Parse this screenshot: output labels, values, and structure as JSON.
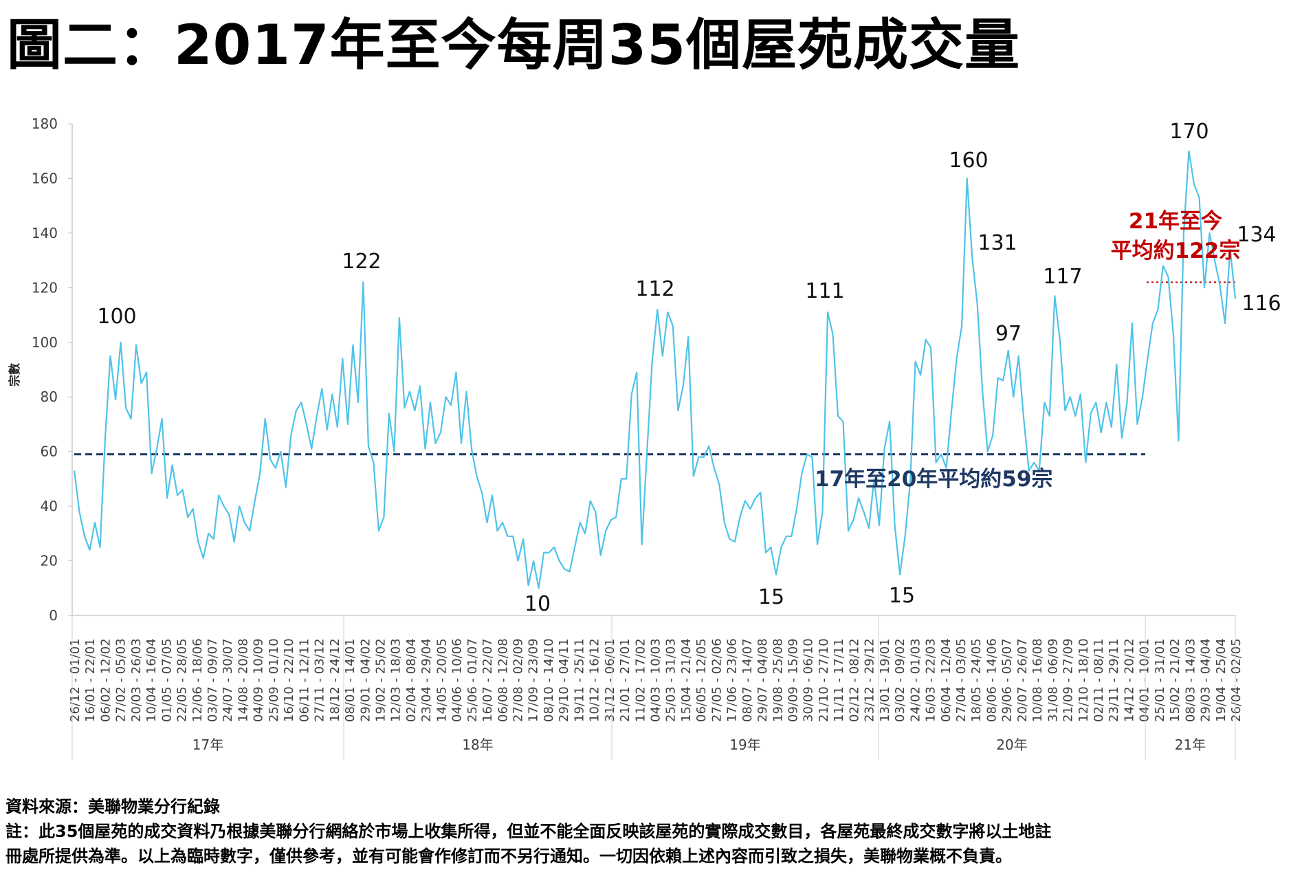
{
  "title": "圖二：2017年至今每周35個屋苑成交量",
  "footer": {
    "source": "資料來源：美聯物業分行紀錄",
    "note_line1": "註：此35個屋苑的成交資料乃根據美聯分行網絡於市場上收集所得，但並不能全面反映該屋苑的實際成交數目，各屋苑最終成交數字將以土地註",
    "note_line2": "冊處所提供為準。以上為臨時數字，僅供參考，並有可能會作修訂而不另行通知。一切因依賴上述內容而引致之損失，美聯物業概不負責。"
  },
  "chart_data": {
    "type": "line",
    "ylabel": "宗數",
    "ylim": [
      0,
      180
    ],
    "yticks": [
      0,
      20,
      40,
      60,
      80,
      100,
      120,
      140,
      160,
      180
    ],
    "grid": false,
    "line_color": "#4FC3E8",
    "series": [
      {
        "values": [
          53,
          38,
          29,
          24,
          34,
          25,
          65,
          95,
          79,
          100,
          76,
          72,
          99,
          85,
          89,
          52,
          61,
          72,
          43,
          55,
          44,
          46,
          36,
          39,
          27,
          21,
          30,
          28,
          44,
          40,
          37,
          27,
          40,
          34,
          31,
          42,
          52,
          72,
          57,
          54,
          60,
          47,
          66,
          75,
          78,
          70,
          61,
          73,
          83,
          68,
          81,
          69,
          94,
          70,
          99,
          78,
          122,
          62,
          56,
          31,
          36,
          74,
          60,
          109,
          76,
          82,
          75,
          84,
          61,
          78,
          63,
          67,
          80,
          77,
          89,
          63,
          82,
          61,
          51,
          45,
          34,
          44,
          31,
          34,
          29,
          29,
          20,
          28,
          11,
          20,
          10,
          23,
          23,
          25,
          20,
          17,
          16,
          25,
          34,
          30,
          42,
          38,
          22,
          31,
          35,
          36,
          50,
          50,
          81,
          89,
          26,
          60,
          93,
          112,
          95,
          111,
          106,
          75,
          84,
          102,
          51,
          58,
          58,
          62,
          54,
          48,
          34,
          28,
          27,
          36,
          42,
          39,
          43,
          45,
          23,
          25,
          15,
          25,
          29,
          29,
          39,
          52,
          59,
          58,
          26,
          38,
          111,
          103,
          73,
          71,
          31,
          35,
          43,
          38,
          32,
          50,
          33,
          61,
          71,
          33,
          15,
          29,
          49,
          93,
          88,
          101,
          98,
          56,
          59,
          54,
          75,
          94,
          106,
          160,
          131,
          114,
          82,
          60,
          66,
          87,
          86,
          97,
          80,
          95,
          72,
          53,
          56,
          53,
          78,
          73,
          117,
          101,
          75,
          80,
          73,
          81,
          56,
          74,
          78,
          67,
          78,
          69,
          92,
          65,
          78,
          107,
          70,
          80,
          94,
          107,
          112,
          128,
          124,
          103,
          64,
          140,
          170,
          158,
          153,
          120,
          140,
          130,
          121,
          107,
          134,
          116
        ]
      }
    ],
    "avg_line_17_20": {
      "value": 59,
      "color": "#1F3864",
      "label": "17年至20年平均約59宗"
    },
    "avg_line_21": {
      "value": 122,
      "color": "#C00000",
      "label_line1": "21年至今",
      "label_line2": "平均約122宗"
    },
    "data_labels": [
      "100",
      "122",
      "10",
      "112",
      "111",
      "15",
      "15",
      "160",
      "131",
      "97",
      "117",
      "170",
      "134",
      "116"
    ],
    "year_groups": [
      "17年",
      "18年",
      "19年",
      "20年",
      "21年"
    ],
    "x_tick_labels": [
      "26/12 - 01/01",
      "16/01 - 22/01",
      "06/02 - 12/02",
      "27/02 - 05/03",
      "20/03 - 26/03",
      "10/04 - 16/04",
      "01/05 - 07/05",
      "22/05 - 28/05",
      "12/06 - 18/06",
      "03/07 - 09/07",
      "24/07 - 30/07",
      "14/08 - 20/08",
      "04/09 - 10/09",
      "25/09 - 01/10",
      "16/10 - 22/10",
      "06/11 - 12/11",
      "27/11 - 03/12",
      "18/12 - 24/12",
      "08/01 - 14/01",
      "29/01 - 04/02",
      "19/02 - 25/02",
      "12/03 - 18/03",
      "02/04 - 08/04",
      "23/04 - 29/04",
      "14/05 - 20/05",
      "04/06 - 10/06",
      "25/06 - 01/07",
      "16/07 - 22/07",
      "06/08 - 12/08",
      "27/08 - 02/09",
      "17/09 - 23/09",
      "08/10 - 14/10",
      "29/10 - 04/11",
      "19/11 - 25/11",
      "10/12 - 16/12",
      "31/12 - 06/01",
      "21/01 - 27/01",
      "11/02 - 17/02",
      "04/03 - 10/03",
      "25/03 - 31/03",
      "15/04 - 21/04",
      "06/05 - 12/05",
      "27/05 - 02/06",
      "17/06 - 23/06",
      "08/07 - 14/07",
      "29/07 - 04/08",
      "19/08 - 25/08",
      "09/09 - 15/09",
      "30/09 - 06/10",
      "21/10 - 27/10",
      "11/11 - 17/11",
      "02/12 - 08/12",
      "23/12 - 29/12",
      "13/01 - 19/01",
      "03/02 - 09/02",
      "24/02 - 01/03",
      "16/03 - 22/03",
      "06/04 - 12/04",
      "27/04 - 03/05",
      "18/05 - 24/05",
      "08/06 - 14/06",
      "29/06 - 05/07",
      "20/07 - 26/07",
      "10/08 - 16/08",
      "31/08 - 06/09",
      "21/09 - 27/09",
      "12/10 - 18/10",
      "02/11 - 08/11",
      "23/11 - 29/11",
      "14/12 - 20/12",
      "04/01 - 10/01",
      "25/01 - 31/01",
      "15/02 - 21/02",
      "08/03 - 14/03",
      "29/03 - 04/04",
      "19/04 - 25/04",
      "26/04 - 02/05"
    ]
  }
}
